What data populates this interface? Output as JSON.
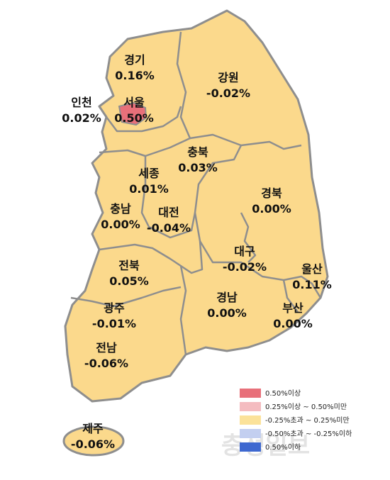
{
  "regions": [
    {
      "name": "경기",
      "value": "0.16%"
    },
    {
      "name": "강원",
      "value": "-0.02%"
    },
    {
      "name": "인천",
      "value": "0.02%"
    },
    {
      "name": "서울",
      "value": "0.50%"
    },
    {
      "name": "충북",
      "value": "0.03%"
    },
    {
      "name": "세종",
      "value": "0.01%"
    },
    {
      "name": "경북",
      "value": "0.00%"
    },
    {
      "name": "충남",
      "value": "0.00%"
    },
    {
      "name": "대전",
      "value": "-0.04%"
    },
    {
      "name": "대구",
      "value": "-0.02%"
    },
    {
      "name": "울산",
      "value": "0.11%"
    },
    {
      "name": "전북",
      "value": "0.05%"
    },
    {
      "name": "경남",
      "value": "0.00%"
    },
    {
      "name": "부산",
      "value": "0.00%"
    },
    {
      "name": "광주",
      "value": "-0.01%"
    },
    {
      "name": "전남",
      "value": "-0.06%"
    },
    {
      "name": "제주",
      "value": "-0.06%"
    }
  ],
  "legend": [
    {
      "label": "0.50%이상",
      "color": "#e8707a"
    },
    {
      "label": "0.25%이상 ~ 0.50%미만",
      "color": "#f4bcc0"
    },
    {
      "label": "-0.25%초과 ~ 0.25%미만",
      "color": "#fbe29a"
    },
    {
      "label": "-0.50%초과 ~ -0.25%이하",
      "color": "#c3cff0"
    },
    {
      "label": "0.50%이하",
      "color": "#3e68d0"
    }
  ],
  "watermark": "충청일보"
}
